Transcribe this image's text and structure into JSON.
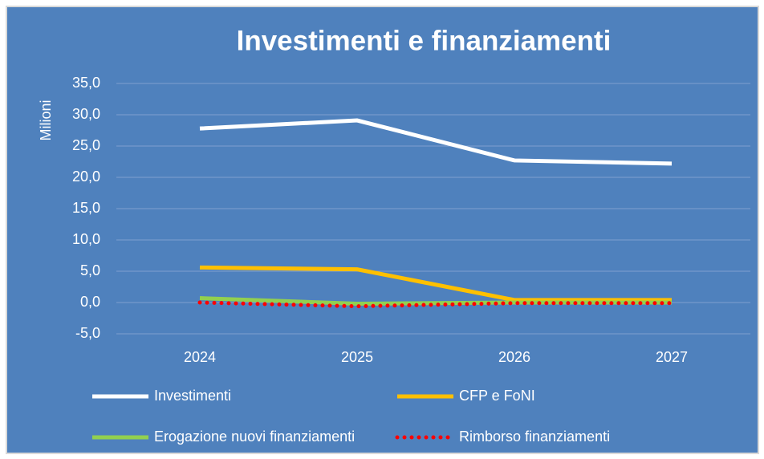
{
  "chart_data": {
    "type": "line",
    "title": "Investimenti e finanziamenti",
    "y_label": "Milioni",
    "categories": [
      "2024",
      "2025",
      "2026",
      "2027"
    ],
    "series": [
      {
        "name": "Investimenti",
        "color": "#ffffff",
        "dash": "solid",
        "values": [
          27.8,
          29.1,
          22.7,
          22.2
        ]
      },
      {
        "name": "CFP e FoNI",
        "color": "#ffc000",
        "dash": "solid",
        "values": [
          5.6,
          5.3,
          0.4,
          0.4
        ]
      },
      {
        "name": "Erogazione nuovi finanziamenti",
        "color": "#92d050",
        "dash": "solid",
        "values": [
          0.7,
          -0.2,
          0.0,
          0.0
        ]
      },
      {
        "name": "Rimborso finanziamenti",
        "color": "#ff0000",
        "dash": "dotted",
        "values": [
          0.0,
          -0.6,
          -0.1,
          -0.1
        ]
      }
    ],
    "ylim": [
      -5,
      35
    ],
    "yticks": [
      {
        "value": -5,
        "label": "-5,0"
      },
      {
        "value": 0,
        "label": "0,0"
      },
      {
        "value": 5,
        "label": "5,0"
      },
      {
        "value": 10,
        "label": "10,0"
      },
      {
        "value": 15,
        "label": "15,0"
      },
      {
        "value": 20,
        "label": "20,0"
      },
      {
        "value": 25,
        "label": "25,0"
      },
      {
        "value": 30,
        "label": "30,0"
      },
      {
        "value": 35,
        "label": "35,0"
      }
    ],
    "grid": true,
    "legend": "bottom",
    "background": "#4f81bd"
  }
}
